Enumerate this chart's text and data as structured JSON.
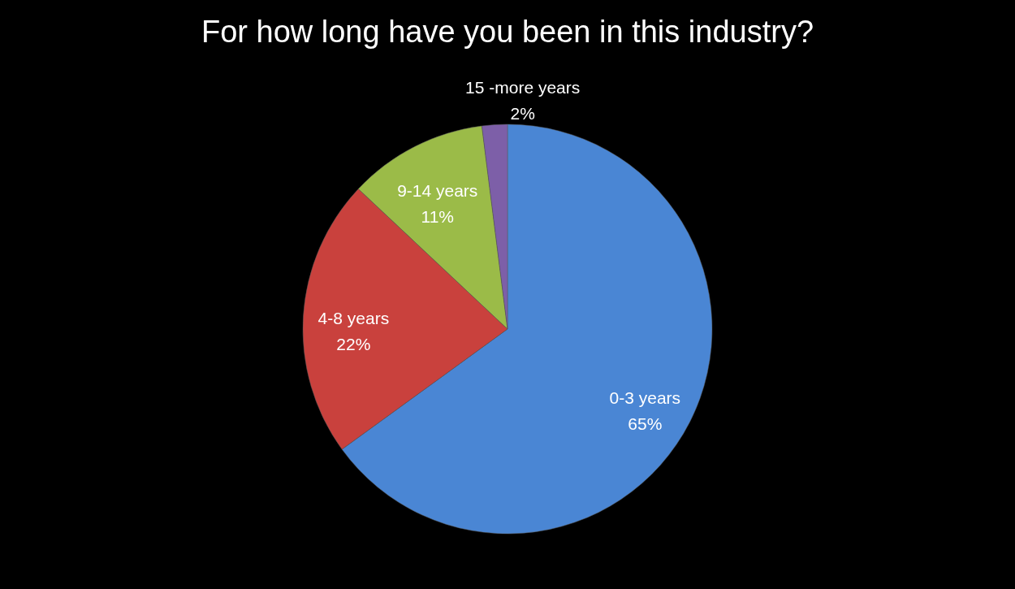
{
  "chart_data": {
    "type": "pie",
    "title": "For how long have you been in this industry?",
    "categories": [
      "0-3 years",
      "4-8 years",
      "9-14 years",
      "15 -more years"
    ],
    "values": [
      65,
      22,
      11,
      2
    ],
    "value_labels": [
      "65%",
      "22%",
      "11%",
      "2%"
    ],
    "colors": [
      "#4a86d4",
      "#c9413d",
      "#9bbb48",
      "#7d5fa8"
    ]
  }
}
